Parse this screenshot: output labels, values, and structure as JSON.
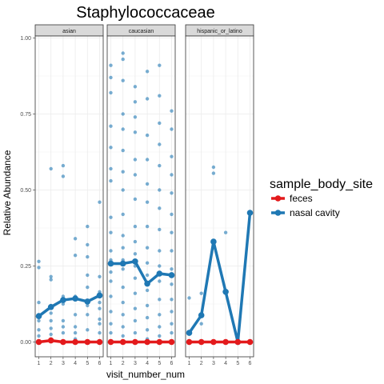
{
  "chart_data": {
    "type": "line",
    "title": "Staphylococcaceae",
    "xlabel": "visit_number_num",
    "ylabel": "Relative Abundance",
    "x_ticks": [
      1,
      2,
      3,
      4,
      5,
      6
    ],
    "y_ticks": [
      0.0,
      0.25,
      0.5,
      0.75,
      1.0
    ],
    "y_tick_labels": [
      "0.00",
      "0.25",
      "0.50",
      "0.75",
      "1.00"
    ],
    "ylim": [
      0,
      1.0
    ],
    "xlim": [
      0.6,
      6.4
    ],
    "grid": true,
    "legend": {
      "title": "sample_body_site",
      "position": "right",
      "entries": [
        {
          "name": "feces",
          "color": "#e31a1c"
        },
        {
          "name": "nasal cavity",
          "color": "#1f78b4"
        }
      ]
    },
    "panels": [
      {
        "label": "asian",
        "series": [
          {
            "name": "feces",
            "x": [
              1,
              2,
              3,
              4,
              5,
              6
            ],
            "values": [
              0.0,
              0.005,
              0.0,
              0.0,
              0.0,
              0.0
            ]
          },
          {
            "name": "nasal cavity",
            "x": [
              1,
              2,
              3,
              4,
              5,
              6
            ],
            "values": [
              0.085,
              0.115,
              0.138,
              0.143,
              0.133,
              0.153
            ]
          }
        ],
        "points": [
          [
            1,
            0.265
          ],
          [
            1,
            0.245
          ],
          [
            1,
            0.13
          ],
          [
            1,
            0.09
          ],
          [
            1,
            0.07
          ],
          [
            1,
            0.04
          ],
          [
            1,
            0.02
          ],
          [
            1,
            0.0
          ],
          [
            2,
            0.57
          ],
          [
            2,
            0.215
          ],
          [
            2,
            0.205
          ],
          [
            2,
            0.12
          ],
          [
            2,
            0.095
          ],
          [
            2,
            0.07
          ],
          [
            2,
            0.045
          ],
          [
            2,
            0.025
          ],
          [
            2,
            0.01
          ],
          [
            3,
            0.58
          ],
          [
            3,
            0.545
          ],
          [
            3,
            0.15
          ],
          [
            3,
            0.125
          ],
          [
            3,
            0.07
          ],
          [
            3,
            0.05
          ],
          [
            3,
            0.03
          ],
          [
            3,
            0.0
          ],
          [
            4,
            0.34
          ],
          [
            4,
            0.285
          ],
          [
            4,
            0.15
          ],
          [
            4,
            0.14
          ],
          [
            4,
            0.09
          ],
          [
            4,
            0.05
          ],
          [
            4,
            0.03
          ],
          [
            4,
            0.01
          ],
          [
            5,
            0.38
          ],
          [
            5,
            0.32
          ],
          [
            5,
            0.28
          ],
          [
            5,
            0.22
          ],
          [
            5,
            0.18
          ],
          [
            5,
            0.12
          ],
          [
            5,
            0.09
          ],
          [
            5,
            0.04
          ],
          [
            6,
            0.46
          ],
          [
            6,
            0.215
          ],
          [
            6,
            0.165
          ],
          [
            6,
            0.13
          ],
          [
            6,
            0.11
          ],
          [
            6,
            0.075
          ],
          [
            6,
            0.06
          ],
          [
            6,
            0.03
          ]
        ]
      },
      {
        "label": "caucasian",
        "series": [
          {
            "name": "feces",
            "x": [
              1,
              2,
              3,
              4,
              5,
              6
            ],
            "values": [
              0.0,
              0.0,
              0.0,
              0.0,
              0.0,
              0.0
            ]
          },
          {
            "name": "nasal cavity",
            "x": [
              1,
              2,
              3,
              4,
              5,
              6
            ],
            "values": [
              0.258,
              0.258,
              0.265,
              0.192,
              0.225,
              0.22
            ]
          }
        ],
        "points": [
          [
            1,
            0.91
          ],
          [
            1,
            0.87
          ],
          [
            1,
            0.82
          ],
          [
            1,
            0.71
          ],
          [
            1,
            0.64
          ],
          [
            1,
            0.57
          ],
          [
            1,
            0.53
          ],
          [
            1,
            0.41
          ],
          [
            1,
            0.36
          ],
          [
            1,
            0.3
          ],
          [
            1,
            0.27
          ],
          [
            1,
            0.23
          ],
          [
            1,
            0.2
          ],
          [
            1,
            0.15
          ],
          [
            1,
            0.1
          ],
          [
            1,
            0.06
          ],
          [
            1,
            0.03
          ],
          [
            1,
            0.0
          ],
          [
            2,
            0.95
          ],
          [
            2,
            0.93
          ],
          [
            2,
            0.86
          ],
          [
            2,
            0.75
          ],
          [
            2,
            0.7
          ],
          [
            2,
            0.63
          ],
          [
            2,
            0.56
          ],
          [
            2,
            0.5
          ],
          [
            2,
            0.42
          ],
          [
            2,
            0.35
          ],
          [
            2,
            0.31
          ],
          [
            2,
            0.27
          ],
          [
            2,
            0.24
          ],
          [
            2,
            0.18
          ],
          [
            2,
            0.13
          ],
          [
            2,
            0.09
          ],
          [
            2,
            0.05
          ],
          [
            2,
            0.02
          ],
          [
            3,
            0.84
          ],
          [
            3,
            0.79
          ],
          [
            3,
            0.74
          ],
          [
            3,
            0.69
          ],
          [
            3,
            0.6
          ],
          [
            3,
            0.55
          ],
          [
            3,
            0.47
          ],
          [
            3,
            0.38
          ],
          [
            3,
            0.33
          ],
          [
            3,
            0.29
          ],
          [
            3,
            0.25
          ],
          [
            3,
            0.21
          ],
          [
            3,
            0.16
          ],
          [
            3,
            0.11
          ],
          [
            3,
            0.07
          ],
          [
            3,
            0.03
          ],
          [
            4,
            0.89
          ],
          [
            4,
            0.8
          ],
          [
            4,
            0.68
          ],
          [
            4,
            0.6
          ],
          [
            4,
            0.52
          ],
          [
            4,
            0.46
          ],
          [
            4,
            0.38
          ],
          [
            4,
            0.31
          ],
          [
            4,
            0.26
          ],
          [
            4,
            0.22
          ],
          [
            4,
            0.17
          ],
          [
            4,
            0.12
          ],
          [
            4,
            0.08
          ],
          [
            4,
            0.04
          ],
          [
            4,
            0.01
          ],
          [
            5,
            0.91
          ],
          [
            5,
            0.81
          ],
          [
            5,
            0.72
          ],
          [
            5,
            0.65
          ],
          [
            5,
            0.58
          ],
          [
            5,
            0.5
          ],
          [
            5,
            0.44
          ],
          [
            5,
            0.37
          ],
          [
            5,
            0.3
          ],
          [
            5,
            0.25
          ],
          [
            5,
            0.2
          ],
          [
            5,
            0.14
          ],
          [
            5,
            0.09
          ],
          [
            5,
            0.05
          ],
          [
            5,
            0.02
          ],
          [
            6,
            0.76
          ],
          [
            6,
            0.7
          ],
          [
            6,
            0.61
          ],
          [
            6,
            0.55
          ],
          [
            6,
            0.49
          ],
          [
            6,
            0.42
          ],
          [
            6,
            0.36
          ],
          [
            6,
            0.3
          ],
          [
            6,
            0.24
          ],
          [
            6,
            0.19
          ],
          [
            6,
            0.14
          ],
          [
            6,
            0.1
          ],
          [
            6,
            0.06
          ],
          [
            6,
            0.03
          ]
        ]
      },
      {
        "label": "hispanic_or_latino",
        "series": [
          {
            "name": "feces",
            "x": [
              1,
              2,
              3,
              4,
              5,
              6
            ],
            "values": [
              0.0,
              0.0,
              0.0,
              0.0,
              0.0,
              0.0
            ]
          },
          {
            "name": "nasal cavity",
            "x": [
              1,
              2,
              3,
              4,
              5,
              6
            ],
            "values": [
              0.03,
              0.088,
              0.33,
              0.165,
              0.0,
              0.425
            ]
          }
        ],
        "points": [
          [
            1,
            0.145
          ],
          [
            1,
            0.03
          ],
          [
            1,
            0.0
          ],
          [
            2,
            0.16
          ],
          [
            2,
            0.06
          ],
          [
            2,
            0.0
          ],
          [
            3,
            0.575
          ],
          [
            3,
            0.555
          ],
          [
            3,
            0.33
          ],
          [
            3,
            0.0
          ],
          [
            4,
            0.36
          ],
          [
            4,
            0.17
          ],
          [
            4,
            0.0
          ],
          [
            5,
            0.0
          ],
          [
            6,
            0.425
          ]
        ]
      }
    ]
  }
}
